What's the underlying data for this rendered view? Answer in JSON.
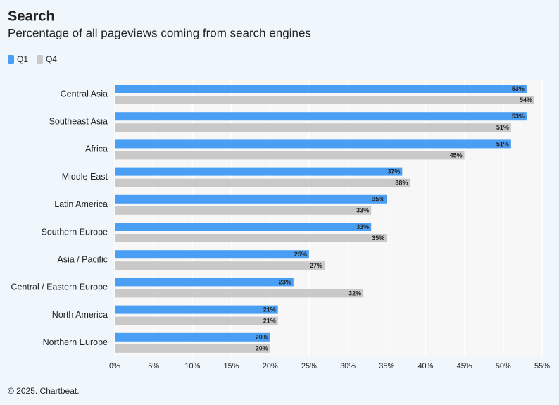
{
  "chart_data": {
    "type": "bar",
    "orientation": "horizontal",
    "title": "Search",
    "subtitle": "Percentage of all pageviews coming from search engines",
    "source": "© 2025. Chartbeat.",
    "categories": [
      "Central Asia",
      "Southeast Asia",
      "Africa",
      "Middle East",
      "Latin America",
      "Southern Europe",
      "Asia / Pacific",
      "Central / Eastern Europe",
      "North America",
      "Northern Europe"
    ],
    "series": [
      {
        "name": "Q1",
        "color": "#4a9ff5",
        "label_color": "#ffffff",
        "values": [
          53,
          53,
          51,
          37,
          35,
          33,
          25,
          23,
          21,
          20
        ],
        "value_labels": [
          "53%",
          "53%",
          "51%",
          "37%",
          "35%",
          "33%",
          "25%",
          "23%",
          "21%",
          "20%"
        ]
      },
      {
        "name": "Q4",
        "color": "#c9c9c9",
        "label_color": "#111111",
        "values": [
          54,
          51,
          45,
          38,
          33,
          35,
          27,
          32,
          21,
          20
        ],
        "value_labels": [
          "54%",
          "51%",
          "45%",
          "38%",
          "33%",
          "35%",
          "27%",
          "32%",
          "21%",
          "20%"
        ]
      }
    ],
    "xlim": [
      0,
      55
    ],
    "xticks": [
      {
        "value": 0,
        "label": "0%"
      },
      {
        "value": 5,
        "label": "5%"
      },
      {
        "value": 10,
        "label": "10%"
      },
      {
        "value": 15,
        "label": "15%"
      },
      {
        "value": 20,
        "label": "20%"
      },
      {
        "value": 25,
        "label": "25%"
      },
      {
        "value": 30,
        "label": "30%"
      },
      {
        "value": 35,
        "label": "35%"
      },
      {
        "value": 40,
        "label": "40%"
      },
      {
        "value": 45,
        "label": "45%"
      },
      {
        "value": 50,
        "label": "50%"
      },
      {
        "value": 55,
        "label": "55%"
      }
    ],
    "grid": true,
    "legend": "top-left"
  }
}
